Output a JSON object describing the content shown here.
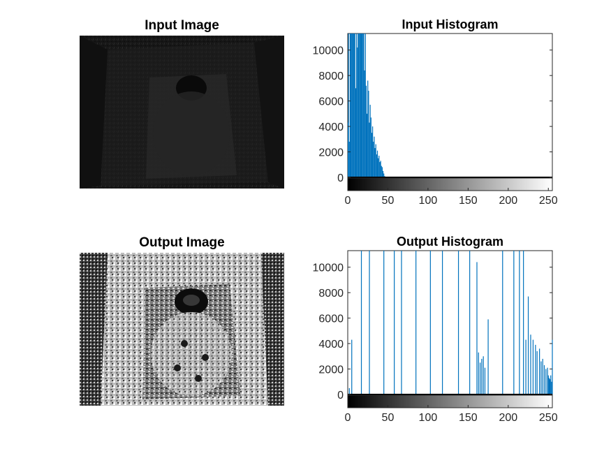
{
  "figure": {
    "panels": [
      {
        "id": "input-image",
        "title": "Input Image"
      },
      {
        "id": "output-image",
        "title": "Output Image"
      }
    ]
  },
  "chart_data": [
    {
      "type": "bar",
      "title": "Input Histogram",
      "xlabel": "",
      "ylabel": "",
      "xlim": [
        0,
        255
      ],
      "ylim": [
        -1000,
        11300
      ],
      "xticks": [
        0,
        50,
        100,
        150,
        200,
        250
      ],
      "yticks": [
        0,
        2000,
        4000,
        6000,
        8000,
        10000
      ],
      "bar_color": "#0072BD",
      "colorbar": "grayscale 0-255",
      "x": [
        0,
        1,
        2,
        3,
        4,
        5,
        6,
        7,
        8,
        9,
        10,
        11,
        12,
        13,
        14,
        15,
        16,
        17,
        18,
        19,
        20,
        21,
        22,
        23,
        24,
        25,
        26,
        27,
        28,
        29,
        30,
        31,
        32,
        33,
        34,
        35,
        36,
        37,
        38,
        39,
        40,
        41,
        42,
        43,
        44,
        45,
        46
      ],
      "values": [
        4300,
        11300,
        2800,
        11300,
        11300,
        11300,
        11300,
        11300,
        11300,
        11300,
        7000,
        11300,
        10200,
        11300,
        11300,
        11300,
        11300,
        11300,
        11300,
        11300,
        11300,
        8400,
        11300,
        7200,
        5000,
        7600,
        6800,
        4300,
        5700,
        4700,
        3500,
        4000,
        2800,
        3200,
        2300,
        2600,
        1800,
        2100,
        1500,
        1700,
        1200,
        1300,
        900,
        800,
        500,
        300,
        100
      ]
    },
    {
      "type": "bar",
      "title": "Output Histogram",
      "xlabel": "",
      "ylabel": "",
      "xlim": [
        0,
        255
      ],
      "ylim": [
        -1000,
        11300
      ],
      "xticks": [
        0,
        50,
        100,
        150,
        200,
        250
      ],
      "yticks": [
        0,
        2000,
        4000,
        6000,
        8000,
        10000
      ],
      "bar_color": "#0072BD",
      "colorbar": "grayscale 0-255",
      "x": [
        2,
        5,
        17,
        27,
        45,
        58,
        67,
        85,
        103,
        118,
        138,
        152,
        161,
        163,
        165,
        167,
        169,
        171,
        175,
        193,
        207,
        214,
        219,
        222,
        225,
        228,
        231,
        234,
        236,
        239,
        241,
        243,
        245,
        247,
        249,
        250,
        251,
        252,
        253,
        254,
        255
      ],
      "values": [
        500,
        4300,
        11300,
        11300,
        11300,
        11300,
        11300,
        11300,
        11300,
        11300,
        11300,
        11300,
        10400,
        3300,
        2500,
        2800,
        3000,
        2100,
        5900,
        11300,
        11300,
        11300,
        11300,
        4300,
        7700,
        4700,
        4300,
        3900,
        3400,
        3600,
        2600,
        2800,
        2300,
        2000,
        2100,
        1500,
        1300,
        1200,
        1500,
        1000,
        4300
      ]
    }
  ]
}
